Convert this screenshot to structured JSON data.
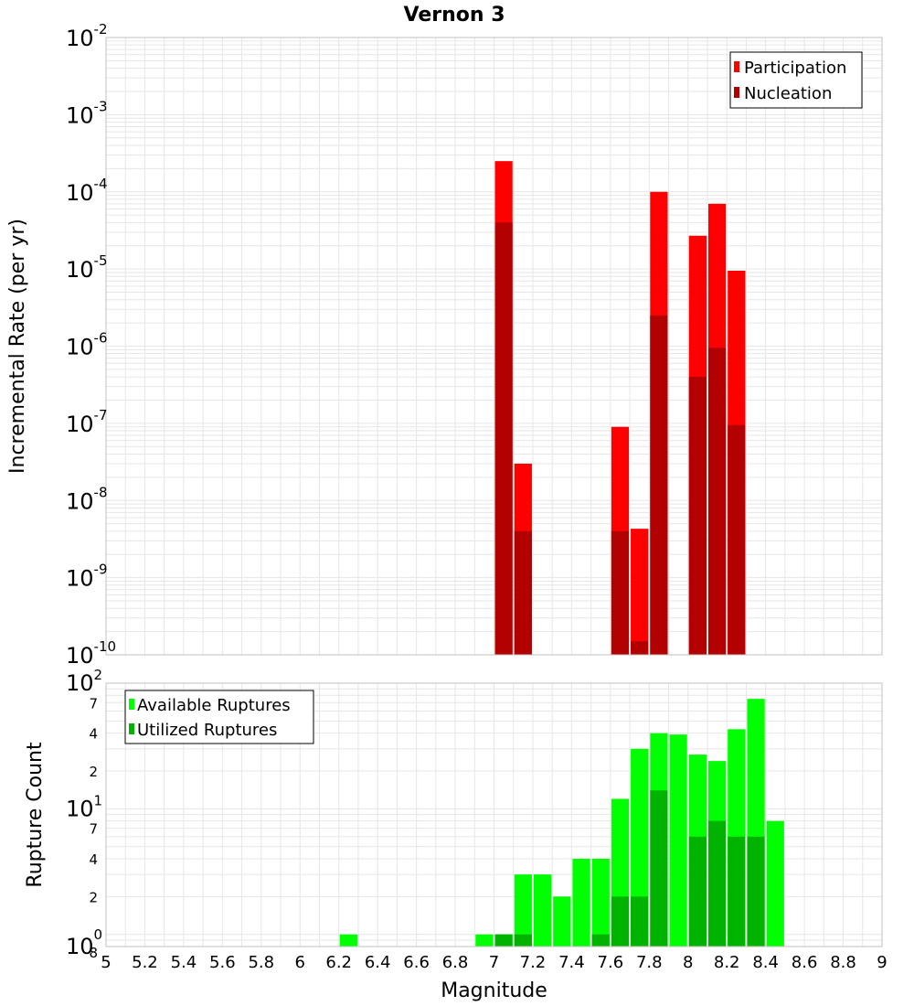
{
  "title": "Vernon 3",
  "xlabel": "Magnitude",
  "colors": {
    "participation": "#ff0000",
    "nucleation": "#b30000",
    "available": "#00ff00",
    "utilized": "#00b300",
    "grid": "#e6e6e6",
    "frame": "#c0c0c0"
  },
  "x_ticks": [
    "5",
    "5.2",
    "5.4",
    "5.6",
    "5.8",
    "6",
    "6.2",
    "6.4",
    "6.6",
    "6.8",
    "7",
    "7.2",
    "7.4",
    "7.6",
    "7.8",
    "8",
    "8.2",
    "8.4",
    "8.6",
    "8.8",
    "9"
  ],
  "chart_data": [
    {
      "type": "bar",
      "ylabel": "Incremental Rate (per yr)",
      "yscale": "log",
      "ylim": [
        1e-10,
        0.01
      ],
      "xlim": [
        5,
        9
      ],
      "bin_width": 0.1,
      "y_tick_labels": [
        {
          "base": "10",
          "exp": "-2"
        },
        {
          "base": "10",
          "exp": "-3"
        },
        {
          "base": "10",
          "exp": "-4"
        },
        {
          "base": "10",
          "exp": "-5"
        },
        {
          "base": "10",
          "exp": "-6"
        },
        {
          "base": "10",
          "exp": "-7"
        },
        {
          "base": "10",
          "exp": "-8"
        },
        {
          "base": "10",
          "exp": "-9"
        },
        {
          "base": "10",
          "exp": "-10"
        }
      ],
      "legend": {
        "position": "top-right",
        "entries": [
          "Participation",
          "Nucleation"
        ]
      },
      "series": [
        {
          "name": "Participation",
          "x": [
            7.05,
            7.15,
            7.65,
            7.75,
            7.85,
            8.05,
            8.15,
            8.25
          ],
          "values": [
            0.00025,
            3e-08,
            9e-08,
            4.3e-09,
            0.0001,
            2.7e-05,
            7e-05,
            9.5e-06
          ]
        },
        {
          "name": "Nucleation",
          "x": [
            7.05,
            7.15,
            7.65,
            7.75,
            7.85,
            8.05,
            8.15,
            8.25
          ],
          "values": [
            4e-05,
            4e-09,
            4e-09,
            1.5e-10,
            2.5e-06,
            4e-07,
            9.5e-07,
            9.5e-08
          ]
        }
      ]
    },
    {
      "type": "bar",
      "ylabel": "Rupture Count",
      "yscale": "log",
      "ylim": [
        0.8,
        100
      ],
      "xlim": [
        5,
        9
      ],
      "bin_width": 0.1,
      "y_tick_labels": [
        {
          "base": "10",
          "exp": "2"
        },
        {
          "base": "10",
          "exp": "1"
        },
        {
          "base": "10",
          "exp": "0"
        }
      ],
      "y_minor_labels": [
        {
          "value": 70,
          "label": "7"
        },
        {
          "value": 40,
          "label": "4"
        },
        {
          "value": 20,
          "label": "2"
        },
        {
          "value": 7,
          "label": "7"
        },
        {
          "value": 4,
          "label": "4"
        },
        {
          "value": 2,
          "label": "2"
        },
        {
          "value": 0.8,
          "label": "8"
        }
      ],
      "legend": {
        "position": "top-left",
        "entries": [
          "Available Ruptures",
          "Utilized Ruptures"
        ]
      },
      "series": [
        {
          "name": "Available Ruptures",
          "x": [
            6.25,
            6.95,
            7.05,
            7.15,
            7.25,
            7.35,
            7.45,
            7.55,
            7.65,
            7.75,
            7.85,
            7.95,
            8.05,
            8.15,
            8.25,
            8.35,
            8.45
          ],
          "values": [
            1,
            1,
            1,
            3,
            3,
            2,
            4,
            4,
            12,
            30,
            40,
            39,
            27,
            24,
            43,
            75,
            8
          ]
        },
        {
          "name": "Utilized Ruptures",
          "x": [
            7.05,
            7.15,
            7.55,
            7.65,
            7.75,
            7.85,
            7.95,
            8.05,
            8.15,
            8.25,
            8.35
          ],
          "values": [
            1,
            1,
            1,
            2,
            2,
            14,
            0,
            6,
            8,
            6,
            6
          ]
        }
      ]
    }
  ]
}
